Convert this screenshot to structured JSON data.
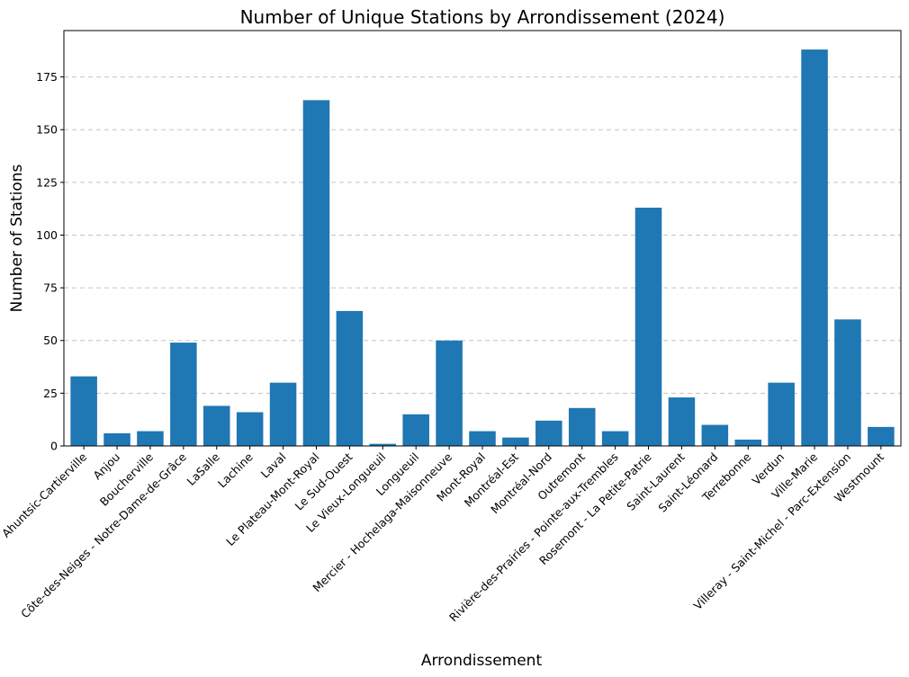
{
  "chart_data": {
    "type": "bar",
    "title": "Number of Unique Stations by Arrondissement (2024)",
    "xlabel": "Arrondissement",
    "ylabel": "Number of Stations",
    "ylim": [
      0,
      197
    ],
    "yticks": [
      0,
      25,
      50,
      75,
      100,
      125,
      150,
      175
    ],
    "grid": "y-dashed",
    "bar_color": "#1f77b4",
    "categories": [
      "Ahuntsic-Cartierville",
      "Anjou",
      "Boucherville",
      "Côte-des-Neiges - Notre-Dame-de-Grâce",
      "LaSalle",
      "Lachine",
      "Laval",
      "Le Plateau-Mont-Royal",
      "Le Sud-Ouest",
      "Le Vieux-Longueuil",
      "Longueuil",
      "Mercier - Hochelaga-Maisonneuve",
      "Mont-Royal",
      "Montréal-Est",
      "Montréal-Nord",
      "Outremont",
      "Rivière-des-Prairies - Pointe-aux-Trembles",
      "Rosemont - La Petite-Patrie",
      "Saint-Laurent",
      "Saint-Léonard",
      "Terrebonne",
      "Verdun",
      "Ville-Marie",
      "Villeray - Saint-Michel - Parc-Extension",
      "Westmount"
    ],
    "values": [
      33,
      6,
      7,
      49,
      19,
      16,
      30,
      164,
      64,
      1,
      15,
      50,
      7,
      4,
      12,
      18,
      7,
      113,
      23,
      10,
      3,
      30,
      188,
      60,
      9
    ]
  }
}
